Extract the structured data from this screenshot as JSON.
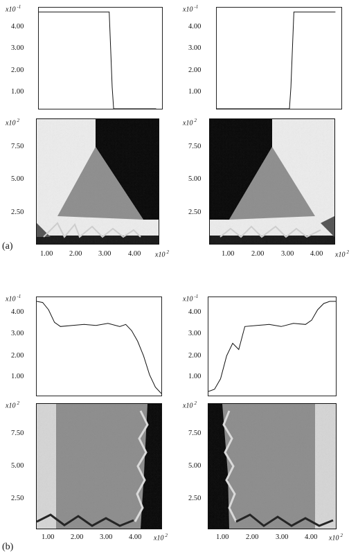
{
  "figure": {
    "part_labels": [
      "(a)",
      "(b)"
    ],
    "exp_y_top": "x10",
    "exp_y_top_power": "-1",
    "exp_img": "x10",
    "exp_img_power": "2",
    "curve_ticks": [
      "4.00",
      "3.00",
      "2.00",
      "1.00"
    ],
    "img_y_ticks": [
      "7.50",
      "5.00",
      "2.50"
    ],
    "img_x_ticks": [
      "1.00",
      "2.00",
      "3.00",
      "4.00"
    ]
  },
  "chart_data": [
    {
      "type": "line",
      "panel": "a-left",
      "x": [
        0,
        240,
        250,
        255,
        400
      ],
      "y": [
        4.5,
        4.5,
        1.0,
        0.0,
        0.0
      ],
      "ylim": [
        0,
        4.7
      ]
    },
    {
      "type": "line",
      "panel": "a-right",
      "x": [
        0,
        245,
        250,
        260,
        400
      ],
      "y": [
        0.0,
        0.0,
        1.0,
        4.5,
        4.5
      ],
      "ylim": [
        0,
        4.7
      ]
    },
    {
      "type": "line",
      "panel": "b-left",
      "x": [
        0,
        20,
        40,
        60,
        80,
        120,
        160,
        200,
        240,
        280,
        300,
        320,
        340,
        360,
        380,
        400,
        420
      ],
      "y": [
        4.5,
        4.45,
        4.1,
        3.5,
        3.3,
        3.35,
        3.4,
        3.35,
        3.45,
        3.3,
        3.4,
        3.1,
        2.6,
        1.9,
        1.0,
        0.4,
        0.1
      ],
      "ylim": [
        0,
        4.7
      ]
    },
    {
      "type": "line",
      "panel": "b-right",
      "x": [
        0,
        20,
        40,
        60,
        80,
        100,
        120,
        160,
        200,
        240,
        280,
        320,
        340,
        360,
        380,
        400,
        420
      ],
      "y": [
        0.2,
        0.3,
        0.8,
        1.9,
        2.5,
        2.2,
        3.3,
        3.35,
        3.4,
        3.3,
        3.45,
        3.4,
        3.6,
        4.1,
        4.4,
        4.5,
        4.5
      ],
      "ylim": [
        0,
        4.7
      ]
    }
  ]
}
